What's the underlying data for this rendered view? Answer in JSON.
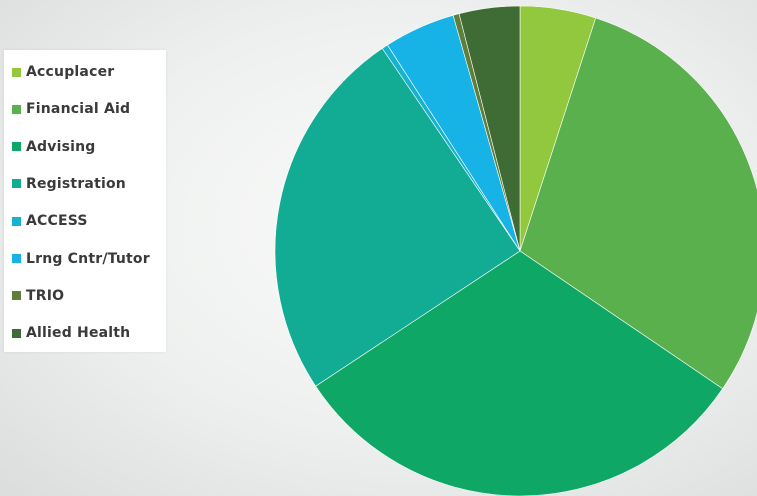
{
  "chart_data": {
    "type": "pie",
    "title": "",
    "categories": [
      "Accuplacer",
      "Financial Aid",
      "Advising",
      "Registration",
      "ACCESS",
      "Lrng Cntr/Tutor",
      "TRIO",
      "Allied Health"
    ],
    "values": [
      5.0,
      29.5,
      31.2,
      24.8,
      0.4,
      4.7,
      0.4,
      4.0
    ],
    "unit": "percent of total (estimated from slice angles)",
    "colors": [
      "#92c83e",
      "#5ab04c",
      "#0fa766",
      "#12ac95",
      "#16b2cf",
      "#17b3e6",
      "#5f7f3a",
      "#3f6b34"
    ],
    "start_angle": "12 o'clock",
    "direction": "clockwise",
    "legend_position": "left"
  }
}
